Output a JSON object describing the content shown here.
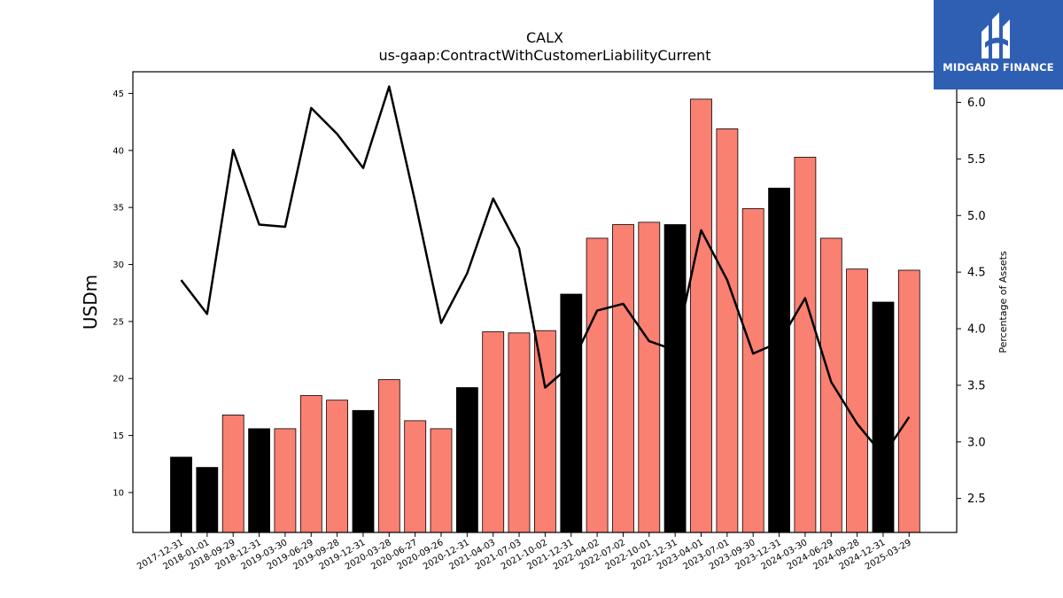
{
  "chart_data": {
    "type": "bar",
    "title": "CALX",
    "subtitle": "us-gaap:ContractWithCustomerLiabilityCurrent",
    "ylabel": "USDm",
    "y2label": "Percentage of Assets",
    "ylim": [
      6.5,
      46.9
    ],
    "y2lim": [
      2.2,
      6.27
    ],
    "yticks": [
      10,
      15,
      20,
      25,
      30,
      35,
      40,
      45
    ],
    "y2ticks": [
      "2.5",
      "3.0",
      "3.5",
      "4.0",
      "4.5",
      "5.0",
      "5.5",
      "6.0"
    ],
    "categories": [
      "2017-12-31",
      "2018-01-01",
      "2018-09-29",
      "2018-12-31",
      "2019-03-30",
      "2019-06-29",
      "2019-09-28",
      "2019-12-31",
      "2020-03-28",
      "2020-06-27",
      "2020-09-26",
      "2020-12-31",
      "2021-04-03",
      "2021-07-03",
      "2021-10-02",
      "2021-12-31",
      "2022-04-02",
      "2022-07-02",
      "2022-10-01",
      "2022-12-31",
      "2023-04-01",
      "2023-07-01",
      "2023-09-30",
      "2023-12-31",
      "2024-03-30",
      "2024-06-29",
      "2024-09-28",
      "2024-12-31",
      "2025-03-29"
    ],
    "series": [
      {
        "kind": "bar",
        "values": [
          13.1,
          12.2,
          16.8,
          15.6,
          15.6,
          18.5,
          18.1,
          17.2,
          19.9,
          16.3,
          15.6,
          19.2,
          24.1,
          24.0,
          24.2,
          27.4,
          32.3,
          33.5,
          33.7,
          33.5,
          44.5,
          41.9,
          34.9,
          36.7,
          39.4,
          32.3,
          29.6,
          26.7,
          29.5
        ],
        "colors": [
          "#000000",
          "#000000",
          "#fa8072",
          "#000000",
          "#fa8072",
          "#fa8072",
          "#fa8072",
          "#000000",
          "#fa8072",
          "#fa8072",
          "#fa8072",
          "#000000",
          "#fa8072",
          "#fa8072",
          "#fa8072",
          "#000000",
          "#fa8072",
          "#fa8072",
          "#fa8072",
          "#000000",
          "#fa8072",
          "#fa8072",
          "#fa8072",
          "#000000",
          "#fa8072",
          "#fa8072",
          "#fa8072",
          "#000000",
          "#fa8072"
        ]
      },
      {
        "kind": "line",
        "axis": "right",
        "color": "#000000",
        "values": [
          4.43,
          4.13,
          5.58,
          4.92,
          4.9,
          5.95,
          5.72,
          5.42,
          6.14,
          5.12,
          4.05,
          4.49,
          5.15,
          4.71,
          3.48,
          3.68,
          4.16,
          4.22,
          3.89,
          3.81,
          4.87,
          4.43,
          3.78,
          3.88,
          4.27,
          3.53,
          3.16,
          2.88,
          3.22
        ]
      }
    ],
    "grid": false
  },
  "branding": {
    "logo_text": "MIDGARD FINANCE",
    "logo_color": "#2f5fb3"
  }
}
